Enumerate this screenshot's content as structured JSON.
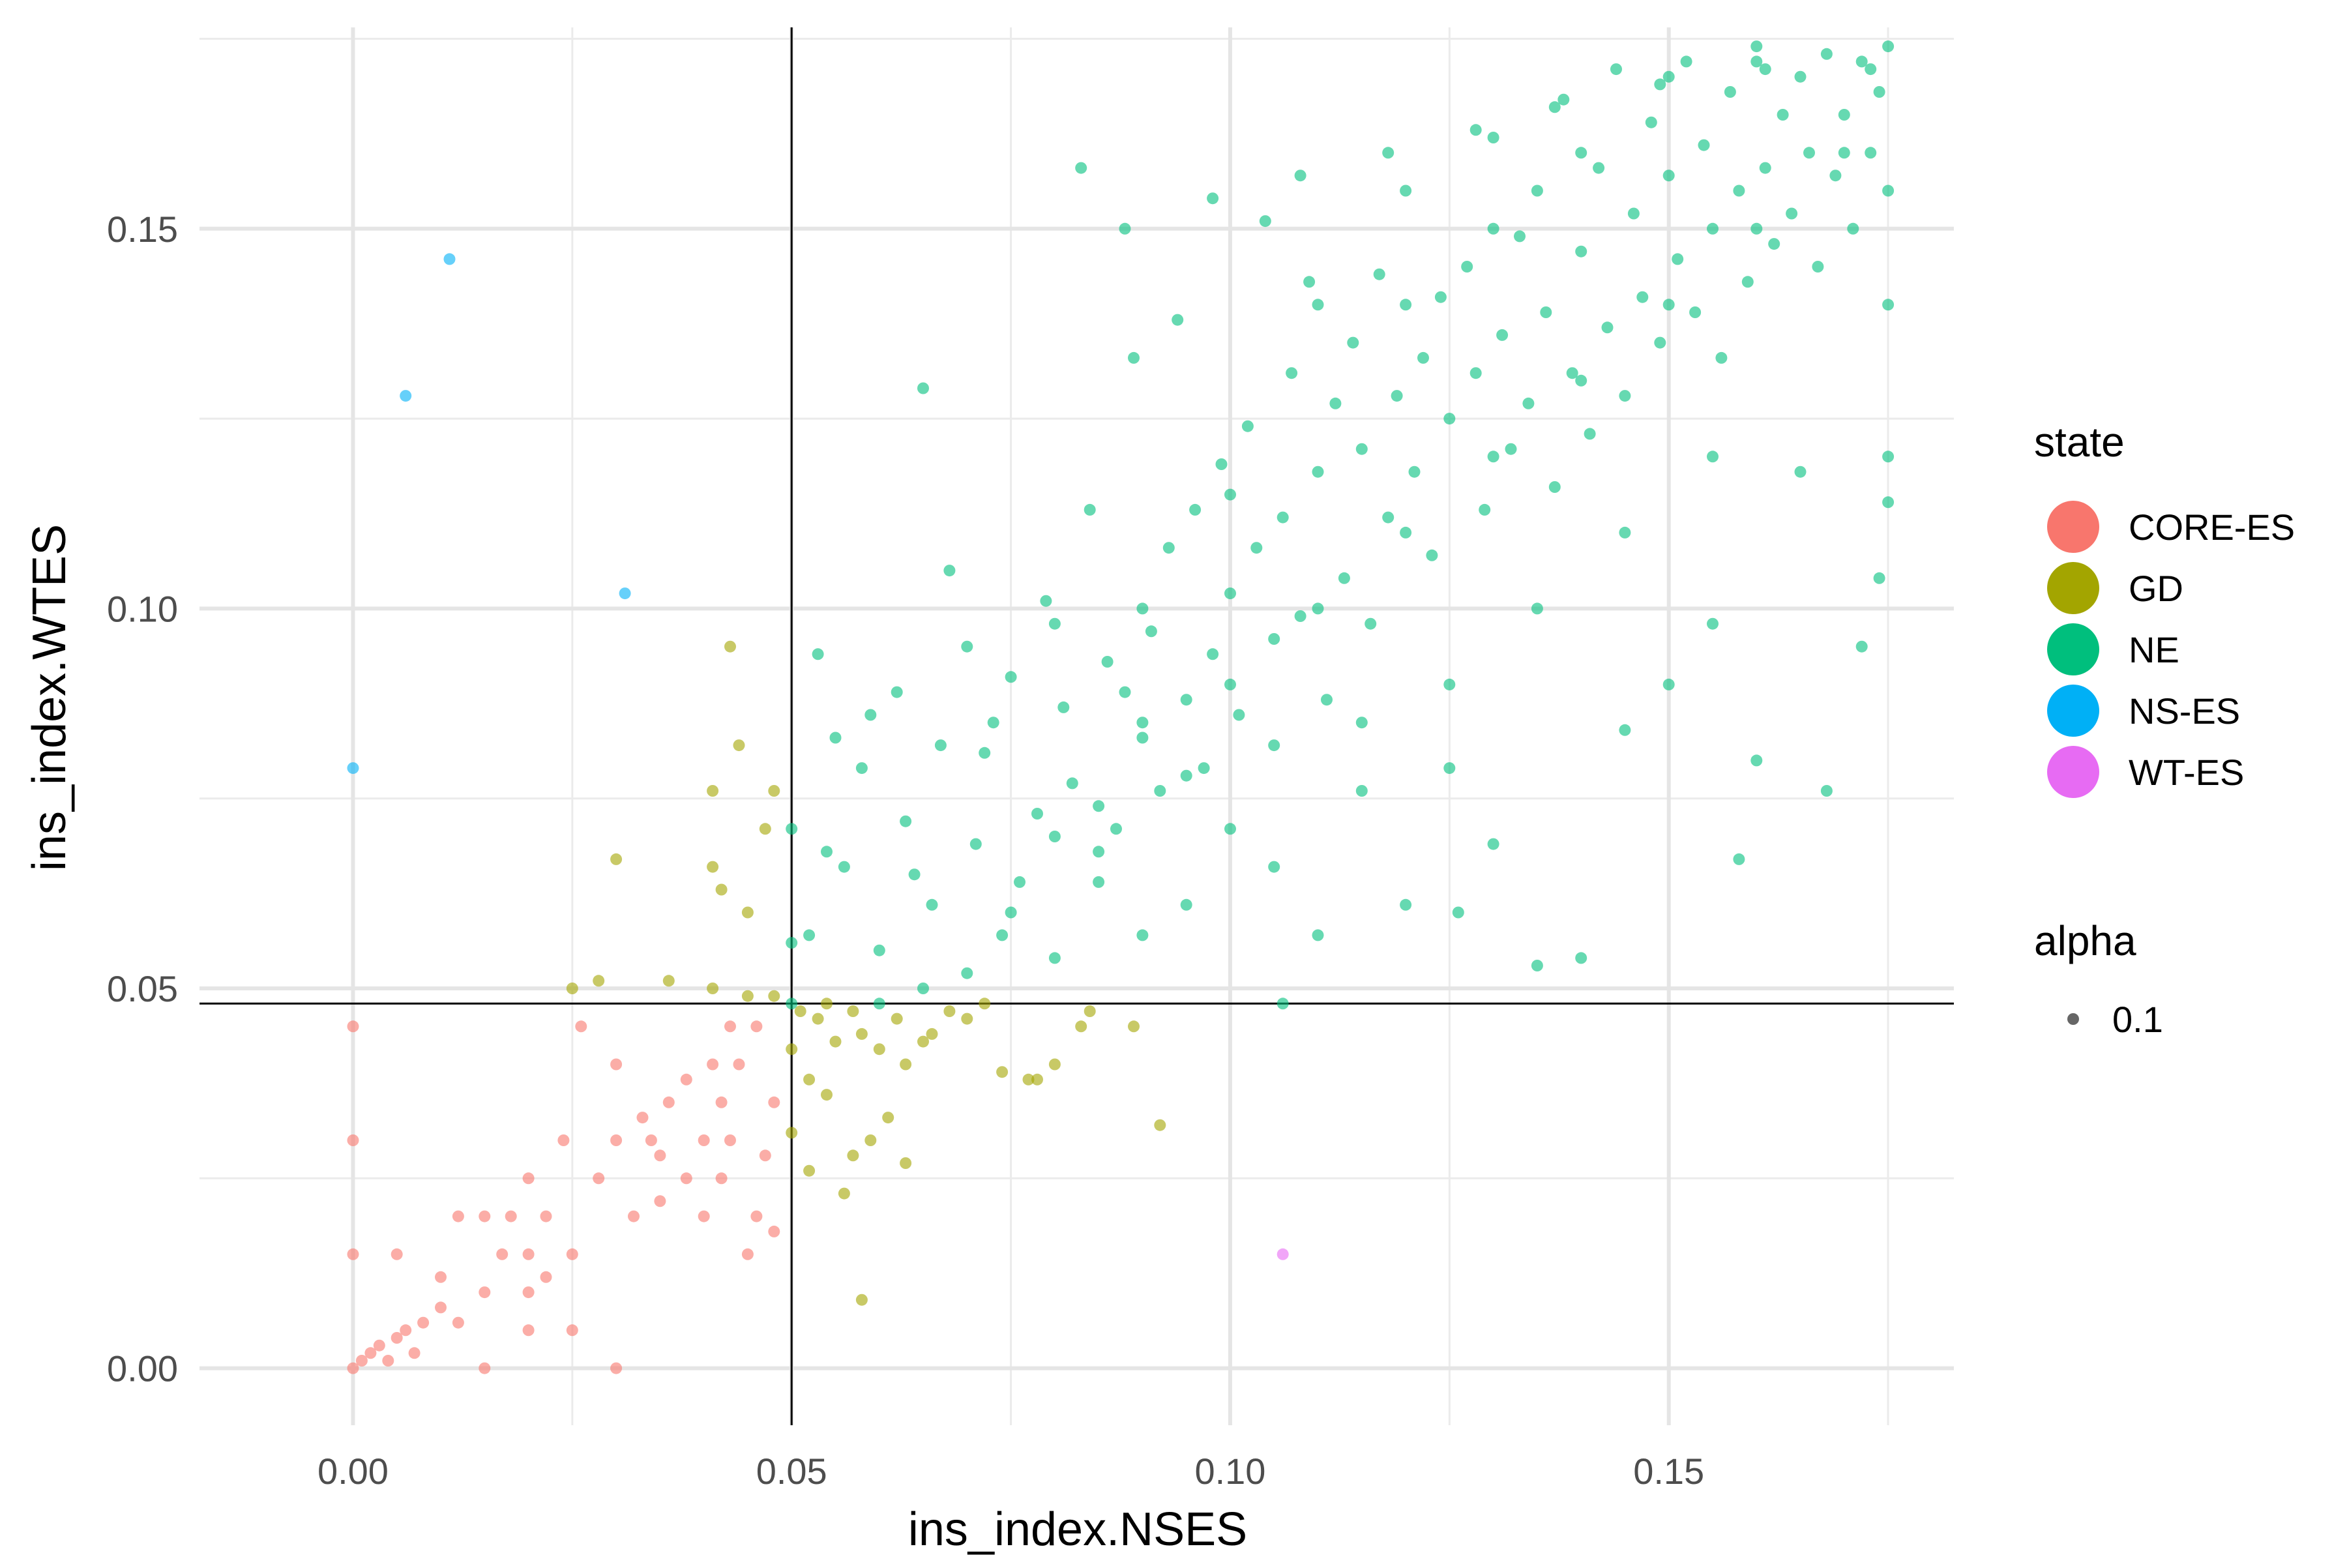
{
  "chart_data": {
    "type": "scatter",
    "title": "",
    "xlabel": "ins_index.NSES",
    "ylabel": "ins_index.WTES",
    "xlim": [
      -0.0175,
      0.1825
    ],
    "ylim": [
      -0.0075,
      0.1765
    ],
    "x_ticks": [
      0.0,
      0.05,
      0.1,
      0.15
    ],
    "x_tick_labels": [
      "0.00",
      "0.05",
      "0.10",
      "0.15"
    ],
    "y_ticks": [
      0.0,
      0.05,
      0.1,
      0.15
    ],
    "y_tick_labels": [
      "0.00",
      "0.05",
      "0.10",
      "0.15"
    ],
    "reference_lines": {
      "vertical_x": 0.05,
      "horizontal_y": 0.048
    },
    "grid": true,
    "legend_placement": "right",
    "legend": {
      "title": "state",
      "alpha_title": "alpha",
      "alpha_value": "0.1"
    },
    "series": [
      {
        "name": "CORE-ES",
        "color": "#F8766D",
        "points": [
          [
            0,
            0
          ],
          [
            0.001,
            0.001
          ],
          [
            0.002,
            0.002
          ],
          [
            0.003,
            0.003
          ],
          [
            0.004,
            0.001
          ],
          [
            0.005,
            0.004
          ],
          [
            0.006,
            0.005
          ],
          [
            0.007,
            0.002
          ],
          [
            0.008,
            0.006
          ],
          [
            0.01,
            0.008
          ],
          [
            0.012,
            0.006
          ],
          [
            0.015,
            0
          ],
          [
            0,
            0.045
          ],
          [
            0,
            0.03
          ],
          [
            0,
            0.015
          ],
          [
            0.005,
            0.015
          ],
          [
            0.01,
            0.012
          ],
          [
            0.012,
            0.02
          ],
          [
            0.015,
            0.02
          ],
          [
            0.018,
            0.02
          ],
          [
            0.02,
            0.025
          ],
          [
            0.022,
            0.02
          ],
          [
            0.024,
            0.03
          ],
          [
            0.025,
            0.015
          ],
          [
            0.028,
            0.025
          ],
          [
            0.03,
            0.03
          ],
          [
            0.032,
            0.02
          ],
          [
            0.034,
            0.03
          ],
          [
            0.035,
            0.028
          ],
          [
            0.036,
            0.035
          ],
          [
            0.038,
            0.025
          ],
          [
            0.04,
            0.03
          ],
          [
            0.041,
            0.04
          ],
          [
            0.042,
            0.035
          ],
          [
            0.043,
            0.045
          ],
          [
            0.044,
            0.04
          ],
          [
            0.046,
            0.045
          ],
          [
            0.048,
            0.035
          ],
          [
            0.047,
            0.028
          ],
          [
            0.045,
            0.015
          ],
          [
            0.04,
            0.02
          ],
          [
            0.035,
            0.022
          ],
          [
            0.03,
            0
          ],
          [
            0.025,
            0.005
          ],
          [
            0.02,
            0.01
          ],
          [
            0.02,
            0.015
          ],
          [
            0.026,
            0.045
          ],
          [
            0.03,
            0.04
          ],
          [
            0.033,
            0.033
          ],
          [
            0.038,
            0.038
          ],
          [
            0.042,
            0.025
          ],
          [
            0.046,
            0.02
          ],
          [
            0.048,
            0.018
          ],
          [
            0.043,
            0.03
          ],
          [
            0.02,
            0.005
          ],
          [
            0.015,
            0.01
          ],
          [
            0.017,
            0.015
          ],
          [
            0.022,
            0.012
          ]
        ]
      },
      {
        "name": "GD",
        "color": "#A3A500",
        "points": [
          [
            0.043,
            0.095
          ],
          [
            0.044,
            0.082
          ],
          [
            0.041,
            0.076
          ],
          [
            0.048,
            0.076
          ],
          [
            0.041,
            0.066
          ],
          [
            0.03,
            0.067
          ],
          [
            0.042,
            0.063
          ],
          [
            0.045,
            0.06
          ],
          [
            0.047,
            0.071
          ],
          [
            0.025,
            0.05
          ],
          [
            0.028,
            0.051
          ],
          [
            0.036,
            0.051
          ],
          [
            0.041,
            0.05
          ],
          [
            0.045,
            0.049
          ],
          [
            0.048,
            0.049
          ],
          [
            0.051,
            0.047
          ],
          [
            0.053,
            0.046
          ],
          [
            0.055,
            0.043
          ],
          [
            0.057,
            0.047
          ],
          [
            0.058,
            0.044
          ],
          [
            0.06,
            0.042
          ],
          [
            0.062,
            0.046
          ],
          [
            0.063,
            0.04
          ],
          [
            0.065,
            0.043
          ],
          [
            0.068,
            0.047
          ],
          [
            0.07,
            0.046
          ],
          [
            0.074,
            0.039
          ],
          [
            0.077,
            0.038
          ],
          [
            0.078,
            0.038
          ],
          [
            0.08,
            0.04
          ],
          [
            0.083,
            0.045
          ],
          [
            0.084,
            0.047
          ],
          [
            0.089,
            0.045
          ],
          [
            0.092,
            0.032
          ],
          [
            0.05,
            0.031
          ],
          [
            0.052,
            0.026
          ],
          [
            0.054,
            0.036
          ],
          [
            0.056,
            0.023
          ],
          [
            0.057,
            0.028
          ],
          [
            0.059,
            0.03
          ],
          [
            0.061,
            0.033
          ],
          [
            0.063,
            0.027
          ],
          [
            0.058,
            0.009
          ],
          [
            0.05,
            0.042
          ],
          [
            0.052,
            0.038
          ],
          [
            0.066,
            0.044
          ],
          [
            0.072,
            0.048
          ],
          [
            0.054,
            0.048
          ]
        ]
      },
      {
        "name": "NE",
        "color": "#00BF7D",
        "points": [
          [
            0.05,
            0.071
          ],
          [
            0.05,
            0.056
          ],
          [
            0.05,
            0.048
          ],
          [
            0.052,
            0.057
          ],
          [
            0.053,
            0.094
          ],
          [
            0.054,
            0.068
          ],
          [
            0.055,
            0.083
          ],
          [
            0.056,
            0.066
          ],
          [
            0.058,
            0.079
          ],
          [
            0.059,
            0.086
          ],
          [
            0.06,
            0.055
          ],
          [
            0.062,
            0.089
          ],
          [
            0.063,
            0.072
          ],
          [
            0.064,
            0.065
          ],
          [
            0.065,
            0.129
          ],
          [
            0.066,
            0.061
          ],
          [
            0.067,
            0.082
          ],
          [
            0.068,
            0.105
          ],
          [
            0.07,
            0.095
          ],
          [
            0.071,
            0.069
          ],
          [
            0.072,
            0.081
          ],
          [
            0.073,
            0.085
          ],
          [
            0.074,
            0.057
          ],
          [
            0.075,
            0.091
          ],
          [
            0.076,
            0.064
          ],
          [
            0.078,
            0.073
          ],
          [
            0.079,
            0.101
          ],
          [
            0.08,
            0.098
          ],
          [
            0.081,
            0.087
          ],
          [
            0.082,
            0.077
          ],
          [
            0.083,
            0.158
          ],
          [
            0.084,
            0.113
          ],
          [
            0.085,
            0.074
          ],
          [
            0.086,
            0.093
          ],
          [
            0.087,
            0.071
          ],
          [
            0.088,
            0.089
          ],
          [
            0.089,
            0.133
          ],
          [
            0.09,
            0.083
          ],
          [
            0.091,
            0.097
          ],
          [
            0.092,
            0.076
          ],
          [
            0.093,
            0.108
          ],
          [
            0.094,
            0.138
          ],
          [
            0.095,
            0.088
          ],
          [
            0.096,
            0.113
          ],
          [
            0.097,
            0.079
          ],
          [
            0.098,
            0.094
          ],
          [
            0.099,
            0.119
          ],
          [
            0.1,
            0.102
          ],
          [
            0.101,
            0.086
          ],
          [
            0.102,
            0.124
          ],
          [
            0.103,
            0.108
          ],
          [
            0.104,
            0.151
          ],
          [
            0.105,
            0.096
          ],
          [
            0.106,
            0.112
          ],
          [
            0.107,
            0.131
          ],
          [
            0.108,
            0.099
          ],
          [
            0.109,
            0.143
          ],
          [
            0.11,
            0.118
          ],
          [
            0.111,
            0.088
          ],
          [
            0.112,
            0.127
          ],
          [
            0.113,
            0.104
          ],
          [
            0.114,
            0.135
          ],
          [
            0.115,
            0.121
          ],
          [
            0.116,
            0.098
          ],
          [
            0.117,
            0.144
          ],
          [
            0.118,
            0.112
          ],
          [
            0.119,
            0.128
          ],
          [
            0.12,
            0.155
          ],
          [
            0.121,
            0.118
          ],
          [
            0.122,
            0.133
          ],
          [
            0.123,
            0.107
          ],
          [
            0.124,
            0.141
          ],
          [
            0.125,
            0.125
          ],
          [
            0.126,
            0.06
          ],
          [
            0.127,
            0.145
          ],
          [
            0.128,
            0.131
          ],
          [
            0.129,
            0.113
          ],
          [
            0.13,
            0.162
          ],
          [
            0.131,
            0.136
          ],
          [
            0.132,
            0.121
          ],
          [
            0.133,
            0.149
          ],
          [
            0.134,
            0.127
          ],
          [
            0.135,
            0.155
          ],
          [
            0.136,
            0.139
          ],
          [
            0.137,
            0.116
          ],
          [
            0.138,
            0.167
          ],
          [
            0.139,
            0.131
          ],
          [
            0.14,
            0.147
          ],
          [
            0.141,
            0.123
          ],
          [
            0.142,
            0.158
          ],
          [
            0.143,
            0.137
          ],
          [
            0.144,
            0.171
          ],
          [
            0.145,
            0.128
          ],
          [
            0.146,
            0.152
          ],
          [
            0.147,
            0.141
          ],
          [
            0.148,
            0.164
          ],
          [
            0.149,
            0.135
          ],
          [
            0.15,
            0.157
          ],
          [
            0.151,
            0.146
          ],
          [
            0.152,
            0.172
          ],
          [
            0.153,
            0.139
          ],
          [
            0.154,
            0.161
          ],
          [
            0.155,
            0.15
          ],
          [
            0.156,
            0.133
          ],
          [
            0.157,
            0.168
          ],
          [
            0.158,
            0.155
          ],
          [
            0.159,
            0.143
          ],
          [
            0.16,
            0.172
          ],
          [
            0.161,
            0.158
          ],
          [
            0.162,
            0.148
          ],
          [
            0.163,
            0.165
          ],
          [
            0.164,
            0.152
          ],
          [
            0.165,
            0.17
          ],
          [
            0.166,
            0.16
          ],
          [
            0.167,
            0.145
          ],
          [
            0.168,
            0.173
          ],
          [
            0.169,
            0.157
          ],
          [
            0.17,
            0.165
          ],
          [
            0.171,
            0.15
          ],
          [
            0.172,
            0.172
          ],
          [
            0.173,
            0.16
          ],
          [
            0.174,
            0.168
          ],
          [
            0.175,
            0.155
          ],
          [
            0.175,
            0.174
          ],
          [
            0.175,
            0.14
          ],
          [
            0.175,
            0.12
          ],
          [
            0.175,
            0.114
          ],
          [
            0.174,
            0.104
          ],
          [
            0.172,
            0.095
          ],
          [
            0.165,
            0.118
          ],
          [
            0.16,
            0.08
          ],
          [
            0.158,
            0.067
          ],
          [
            0.155,
            0.098
          ],
          [
            0.15,
            0.09
          ],
          [
            0.145,
            0.084
          ],
          [
            0.14,
            0.054
          ],
          [
            0.135,
            0.053
          ],
          [
            0.13,
            0.069
          ],
          [
            0.125,
            0.079
          ],
          [
            0.12,
            0.061
          ],
          [
            0.115,
            0.076
          ],
          [
            0.11,
            0.057
          ],
          [
            0.106,
            0.048
          ],
          [
            0.105,
            0.066
          ],
          [
            0.1,
            0.071
          ],
          [
            0.095,
            0.061
          ],
          [
            0.09,
            0.057
          ],
          [
            0.085,
            0.064
          ],
          [
            0.08,
            0.054
          ],
          [
            0.09,
            0.1
          ],
          [
            0.1,
            0.115
          ],
          [
            0.11,
            0.14
          ],
          [
            0.12,
            0.14
          ],
          [
            0.13,
            0.15
          ],
          [
            0.14,
            0.16
          ],
          [
            0.15,
            0.17
          ],
          [
            0.16,
            0.174
          ],
          [
            0.168,
            0.076
          ],
          [
            0.155,
            0.12
          ],
          [
            0.145,
            0.11
          ],
          [
            0.135,
            0.1
          ],
          [
            0.125,
            0.09
          ],
          [
            0.115,
            0.085
          ],
          [
            0.105,
            0.082
          ],
          [
            0.095,
            0.078
          ],
          [
            0.085,
            0.068
          ],
          [
            0.075,
            0.06
          ],
          [
            0.065,
            0.05
          ],
          [
            0.06,
            0.048
          ],
          [
            0.07,
            0.052
          ],
          [
            0.08,
            0.07
          ],
          [
            0.09,
            0.085
          ],
          [
            0.1,
            0.09
          ],
          [
            0.11,
            0.1
          ],
          [
            0.12,
            0.11
          ],
          [
            0.13,
            0.12
          ],
          [
            0.14,
            0.13
          ],
          [
            0.15,
            0.14
          ],
          [
            0.16,
            0.15
          ],
          [
            0.17,
            0.16
          ],
          [
            0.173,
            0.171
          ],
          [
            0.161,
            0.171
          ],
          [
            0.149,
            0.169
          ],
          [
            0.137,
            0.166
          ],
          [
            0.128,
            0.163
          ],
          [
            0.118,
            0.16
          ],
          [
            0.108,
            0.157
          ],
          [
            0.098,
            0.154
          ],
          [
            0.088,
            0.15
          ]
        ]
      },
      {
        "name": "NS-ES",
        "color": "#00B0F6",
        "points": [
          [
            0.011,
            0.146
          ],
          [
            0.006,
            0.128
          ],
          [
            0.031,
            0.102
          ],
          [
            0,
            0.079
          ]
        ]
      },
      {
        "name": "WT-ES",
        "color": "#E76BF3",
        "points": [
          [
            0.106,
            0.015
          ]
        ]
      }
    ]
  }
}
